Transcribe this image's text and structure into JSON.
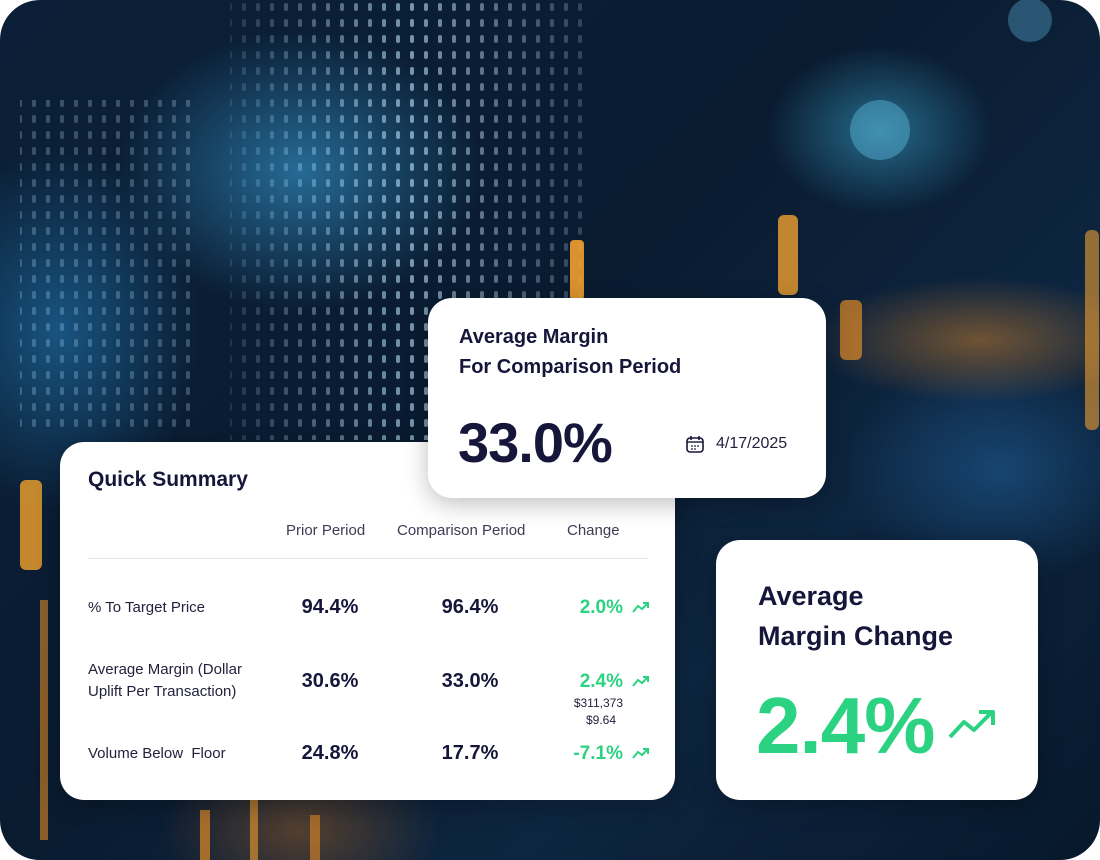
{
  "comparison_card": {
    "title_lines": [
      "Average Margin",
      "For Comparison Period"
    ],
    "value": "33.0%",
    "date": "4/17/2025"
  },
  "summary": {
    "title": "Quick Summary",
    "headers": [
      "Prior Period",
      "Comparison Period",
      "Change"
    ],
    "rows": [
      {
        "label": "% To Target Price",
        "prior": "94.4%",
        "comparison": "96.4%",
        "change": "2.0%"
      },
      {
        "label": "Average Margin (Dollar Uplift Per Transaction)",
        "prior": "30.6%",
        "comparison": "33.0%",
        "change": "2.4%",
        "details": [
          "$311,373",
          "$9.64"
        ]
      },
      {
        "label": "Volume Below  Floor",
        "prior": "24.8%",
        "comparison": "17.7%",
        "change": "-7.1%"
      }
    ]
  },
  "change_card": {
    "title_lines": [
      "Average",
      "Margin Change"
    ],
    "value": "2.4%"
  }
}
